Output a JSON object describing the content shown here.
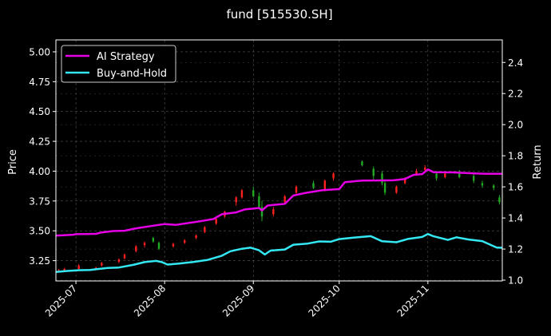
{
  "chart_data": {
    "type": "line",
    "title": "fund [515530.SH]",
    "ylabel_left": "Price",
    "ylabel_right": "Return",
    "xlim": [
      "2025-06-24",
      "2025-11-27"
    ],
    "ylim_left": [
      3.08,
      5.1
    ],
    "ylim_right": [
      0.995,
      2.545
    ],
    "x_ticks": [
      "2025-07",
      "2025-08",
      "2025-09",
      "2025-10",
      "2025-11"
    ],
    "y_ticks_left": [
      "3.25",
      "3.50",
      "3.75",
      "4.00",
      "4.25",
      "4.50",
      "4.75",
      "5.00"
    ],
    "y_ticks_right": [
      "1.0",
      "1.2",
      "1.4",
      "1.6",
      "1.8",
      "2.0",
      "2.2",
      "2.4"
    ],
    "grid": true,
    "legend_position": "top-left",
    "series": [
      {
        "name": "AI Strategy",
        "color": "#e600e6",
        "axis": "right",
        "points": [
          [
            "2025-06-24",
            1.286
          ],
          [
            "2025-06-30",
            1.292
          ],
          [
            "2025-07-01",
            1.296
          ],
          [
            "2025-07-04",
            1.297
          ],
          [
            "2025-07-08",
            1.298
          ],
          [
            "2025-07-10",
            1.307
          ],
          [
            "2025-07-14",
            1.316
          ],
          [
            "2025-07-18",
            1.318
          ],
          [
            "2025-07-22",
            1.333
          ],
          [
            "2025-07-28",
            1.35
          ],
          [
            "2025-08-01",
            1.361
          ],
          [
            "2025-08-05",
            1.356
          ],
          [
            "2025-08-12",
            1.375
          ],
          [
            "2025-08-18",
            1.393
          ],
          [
            "2025-08-21",
            1.424
          ],
          [
            "2025-08-26",
            1.436
          ],
          [
            "2025-08-29",
            1.455
          ],
          [
            "2025-09-03",
            1.464
          ],
          [
            "2025-09-04",
            1.448
          ],
          [
            "2025-09-06",
            1.48
          ],
          [
            "2025-09-12",
            1.491
          ],
          [
            "2025-09-15",
            1.544
          ],
          [
            "2025-09-19",
            1.56
          ],
          [
            "2025-09-25",
            1.578
          ],
          [
            "2025-10-01",
            1.586
          ],
          [
            "2025-10-03",
            1.63
          ],
          [
            "2025-10-09",
            1.64
          ],
          [
            "2025-10-14",
            1.641
          ],
          [
            "2025-10-20",
            1.642
          ],
          [
            "2025-10-24",
            1.651
          ],
          [
            "2025-10-27",
            1.677
          ],
          [
            "2025-10-30",
            1.682
          ],
          [
            "2025-11-01",
            1.712
          ],
          [
            "2025-11-03",
            1.694
          ],
          [
            "2025-11-10",
            1.693
          ],
          [
            "2025-11-17",
            1.687
          ],
          [
            "2025-11-21",
            1.684
          ],
          [
            "2025-11-27",
            1.684
          ]
        ]
      },
      {
        "name": "Buy-and-Hold",
        "color": "#33e8f2",
        "axis": "right",
        "points": [
          [
            "2025-06-24",
            1.053
          ],
          [
            "2025-06-28",
            1.059
          ],
          [
            "2025-07-02",
            1.064
          ],
          [
            "2025-07-06",
            1.066
          ],
          [
            "2025-07-08",
            1.07
          ],
          [
            "2025-07-12",
            1.078
          ],
          [
            "2025-07-16",
            1.081
          ],
          [
            "2025-07-21",
            1.098
          ],
          [
            "2025-07-25",
            1.116
          ],
          [
            "2025-07-29",
            1.124
          ],
          [
            "2025-07-31",
            1.116
          ],
          [
            "2025-08-02",
            1.1
          ],
          [
            "2025-08-06",
            1.107
          ],
          [
            "2025-08-11",
            1.117
          ],
          [
            "2025-08-16",
            1.13
          ],
          [
            "2025-08-21",
            1.157
          ],
          [
            "2025-08-24",
            1.186
          ],
          [
            "2025-08-28",
            1.202
          ],
          [
            "2025-08-31",
            1.209
          ],
          [
            "2025-09-03",
            1.192
          ],
          [
            "2025-09-05",
            1.165
          ],
          [
            "2025-09-07",
            1.19
          ],
          [
            "2025-09-12",
            1.197
          ],
          [
            "2025-09-15",
            1.228
          ],
          [
            "2025-09-20",
            1.235
          ],
          [
            "2025-09-24",
            1.249
          ],
          [
            "2025-09-28",
            1.247
          ],
          [
            "2025-10-01",
            1.264
          ],
          [
            "2025-10-06",
            1.273
          ],
          [
            "2025-10-12",
            1.283
          ],
          [
            "2025-10-16",
            1.25
          ],
          [
            "2025-10-21",
            1.244
          ],
          [
            "2025-10-25",
            1.265
          ],
          [
            "2025-10-30",
            1.278
          ],
          [
            "2025-11-01",
            1.297
          ],
          [
            "2025-11-03",
            1.282
          ],
          [
            "2025-11-08",
            1.259
          ],
          [
            "2025-11-11",
            1.276
          ],
          [
            "2025-11-15",
            1.262
          ],
          [
            "2025-11-20",
            1.251
          ],
          [
            "2025-11-25",
            1.21
          ],
          [
            "2025-11-27",
            1.208
          ]
        ]
      }
    ],
    "candlesticks": {
      "axis": "left",
      "up_color": "#ff2020",
      "down_color": "#22aa22",
      "columns": [
        "date",
        "open",
        "high",
        "low",
        "close"
      ],
      "data": [
        [
          "2025-06-25",
          3.16,
          3.18,
          3.15,
          3.17
        ],
        [
          "2025-06-27",
          3.17,
          3.19,
          3.16,
          3.18
        ],
        [
          "2025-07-02",
          3.18,
          3.22,
          3.17,
          3.21
        ],
        [
          "2025-07-08",
          3.19,
          3.2,
          3.18,
          3.19
        ],
        [
          "2025-07-10",
          3.21,
          3.24,
          3.2,
          3.23
        ],
        [
          "2025-07-16",
          3.24,
          3.27,
          3.23,
          3.26
        ],
        [
          "2025-07-18",
          3.27,
          3.31,
          3.26,
          3.3
        ],
        [
          "2025-07-22",
          3.33,
          3.38,
          3.32,
          3.37
        ],
        [
          "2025-07-25",
          3.38,
          3.41,
          3.36,
          3.4
        ],
        [
          "2025-07-28",
          3.44,
          3.45,
          3.4,
          3.41
        ],
        [
          "2025-07-30",
          3.4,
          3.41,
          3.34,
          3.35
        ],
        [
          "2025-08-04",
          3.37,
          3.4,
          3.36,
          3.39
        ],
        [
          "2025-08-08",
          3.4,
          3.43,
          3.39,
          3.42
        ],
        [
          "2025-08-12",
          3.44,
          3.47,
          3.43,
          3.46
        ],
        [
          "2025-08-15",
          3.49,
          3.54,
          3.48,
          3.53
        ],
        [
          "2025-08-19",
          3.56,
          3.61,
          3.55,
          3.6
        ],
        [
          "2025-08-22",
          3.62,
          3.67,
          3.61,
          3.66
        ],
        [
          "2025-08-26",
          3.74,
          3.79,
          3.71,
          3.78
        ],
        [
          "2025-08-28",
          3.78,
          3.85,
          3.77,
          3.84
        ],
        [
          "2025-09-01",
          3.84,
          3.87,
          3.78,
          3.79
        ],
        [
          "2025-09-03",
          3.79,
          3.82,
          3.68,
          3.7
        ],
        [
          "2025-09-04",
          3.7,
          3.75,
          3.58,
          3.62
        ],
        [
          "2025-09-08",
          3.64,
          3.7,
          3.62,
          3.68
        ],
        [
          "2025-09-12",
          3.74,
          3.8,
          3.73,
          3.79
        ],
        [
          "2025-09-16",
          3.82,
          3.88,
          3.81,
          3.87
        ],
        [
          "2025-09-22",
          3.9,
          3.92,
          3.85,
          3.86
        ],
        [
          "2025-09-26",
          3.84,
          3.93,
          3.83,
          3.92
        ],
        [
          "2025-09-29",
          3.94,
          3.99,
          3.92,
          3.98
        ],
        [
          "2025-10-09",
          4.08,
          4.09,
          4.04,
          4.05
        ],
        [
          "2025-10-13",
          4.02,
          4.04,
          3.92,
          3.96
        ],
        [
          "2025-10-16",
          3.98,
          4.0,
          3.88,
          3.9
        ],
        [
          "2025-10-17",
          3.9,
          3.93,
          3.8,
          3.82
        ],
        [
          "2025-10-21",
          3.82,
          3.88,
          3.81,
          3.87
        ],
        [
          "2025-10-24",
          3.9,
          3.95,
          3.89,
          3.93
        ],
        [
          "2025-10-28",
          3.97,
          4.02,
          3.96,
          4.0
        ],
        [
          "2025-10-31",
          4.01,
          4.05,
          3.99,
          4.03
        ],
        [
          "2025-11-04",
          3.98,
          4.0,
          3.92,
          3.94
        ],
        [
          "2025-11-07",
          3.95,
          3.99,
          3.94,
          3.98
        ],
        [
          "2025-11-12",
          3.99,
          4.01,
          3.94,
          3.95
        ],
        [
          "2025-11-17",
          3.96,
          3.98,
          3.9,
          3.92
        ],
        [
          "2025-11-20",
          3.9,
          3.92,
          3.86,
          3.88
        ],
        [
          "2025-11-24",
          3.88,
          3.89,
          3.84,
          3.86
        ],
        [
          "2025-11-26",
          3.78,
          3.8,
          3.72,
          3.74
        ]
      ]
    }
  }
}
